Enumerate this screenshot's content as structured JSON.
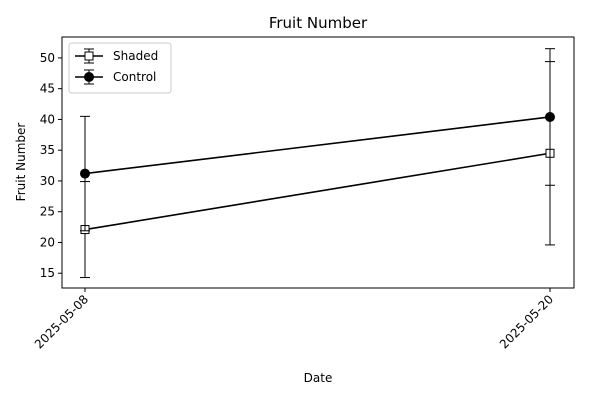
{
  "chart_data": {
    "type": "line",
    "title": "Fruit Number",
    "xlabel": "Date",
    "ylabel": "Fruit Number",
    "x": [
      "2025-05-08",
      "2025-05-20"
    ],
    "ylim": [
      12.6,
      53.4
    ],
    "yticks": [
      15,
      20,
      25,
      30,
      35,
      40,
      45,
      50
    ],
    "grid": false,
    "legend_position": "top-left",
    "series": [
      {
        "name": "Shaded",
        "marker": "square",
        "marker_fill": "#ffffff",
        "color": "#000000",
        "values": [
          22.1,
          34.5
        ],
        "error_low": [
          14.3,
          19.6
        ],
        "error_high": [
          29.9,
          49.4
        ]
      },
      {
        "name": "Control",
        "marker": "circle",
        "marker_fill": "#000000",
        "color": "#000000",
        "values": [
          31.2,
          40.4
        ],
        "error_low": [
          21.9,
          29.3
        ],
        "error_high": [
          40.5,
          51.5
        ]
      }
    ]
  }
}
